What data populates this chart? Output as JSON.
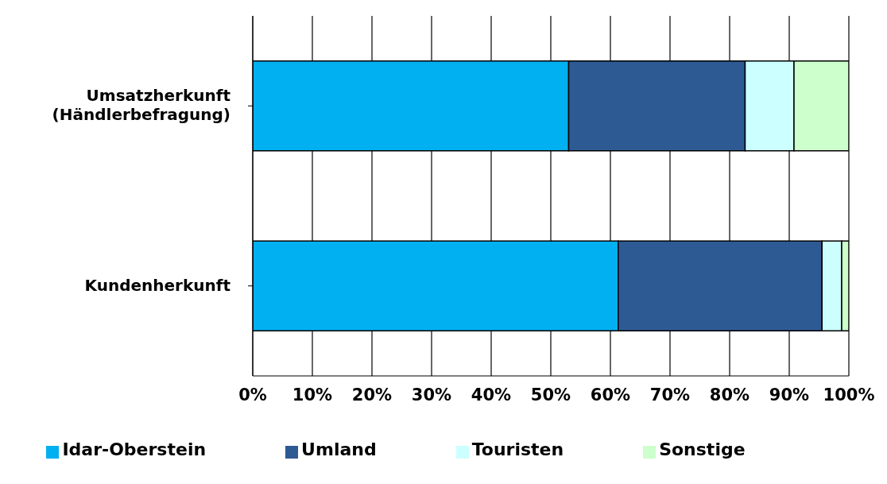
{
  "chart_data": {
    "type": "bar",
    "orientation": "horizontal",
    "stacked": true,
    "categories": [
      "Umsatzherkunft (Händlerbefragung)",
      "Kundenherkunft"
    ],
    "series": [
      {
        "name": "Idar-Oberstein",
        "color": "#00b0f0",
        "values": [
          53.0,
          61.3
        ]
      },
      {
        "name": "Umland",
        "color": "#2e5a94",
        "values": [
          29.6,
          34.2
        ]
      },
      {
        "name": "Touristen",
        "color": "#ccffff",
        "values": [
          8.2,
          3.3
        ]
      },
      {
        "name": "Sonstige",
        "color": "#ccffcc",
        "values": [
          9.2,
          1.2
        ]
      }
    ],
    "xlim": [
      0,
      100
    ],
    "xticks": [
      {
        "value": 0,
        "label": "0%"
      },
      {
        "value": 10,
        "label": "10%"
      },
      {
        "value": 20,
        "label": "20%"
      },
      {
        "value": 30,
        "label": "30%"
      },
      {
        "value": 40,
        "label": "40%"
      },
      {
        "value": 50,
        "label": "50%"
      },
      {
        "value": 60,
        "label": "60%"
      },
      {
        "value": 70,
        "label": "70%"
      },
      {
        "value": 80,
        "label": "80%"
      },
      {
        "value": 90,
        "label": "90%"
      },
      {
        "value": 100,
        "label": "100%"
      }
    ],
    "grid": "x",
    "legend": "bottom"
  }
}
